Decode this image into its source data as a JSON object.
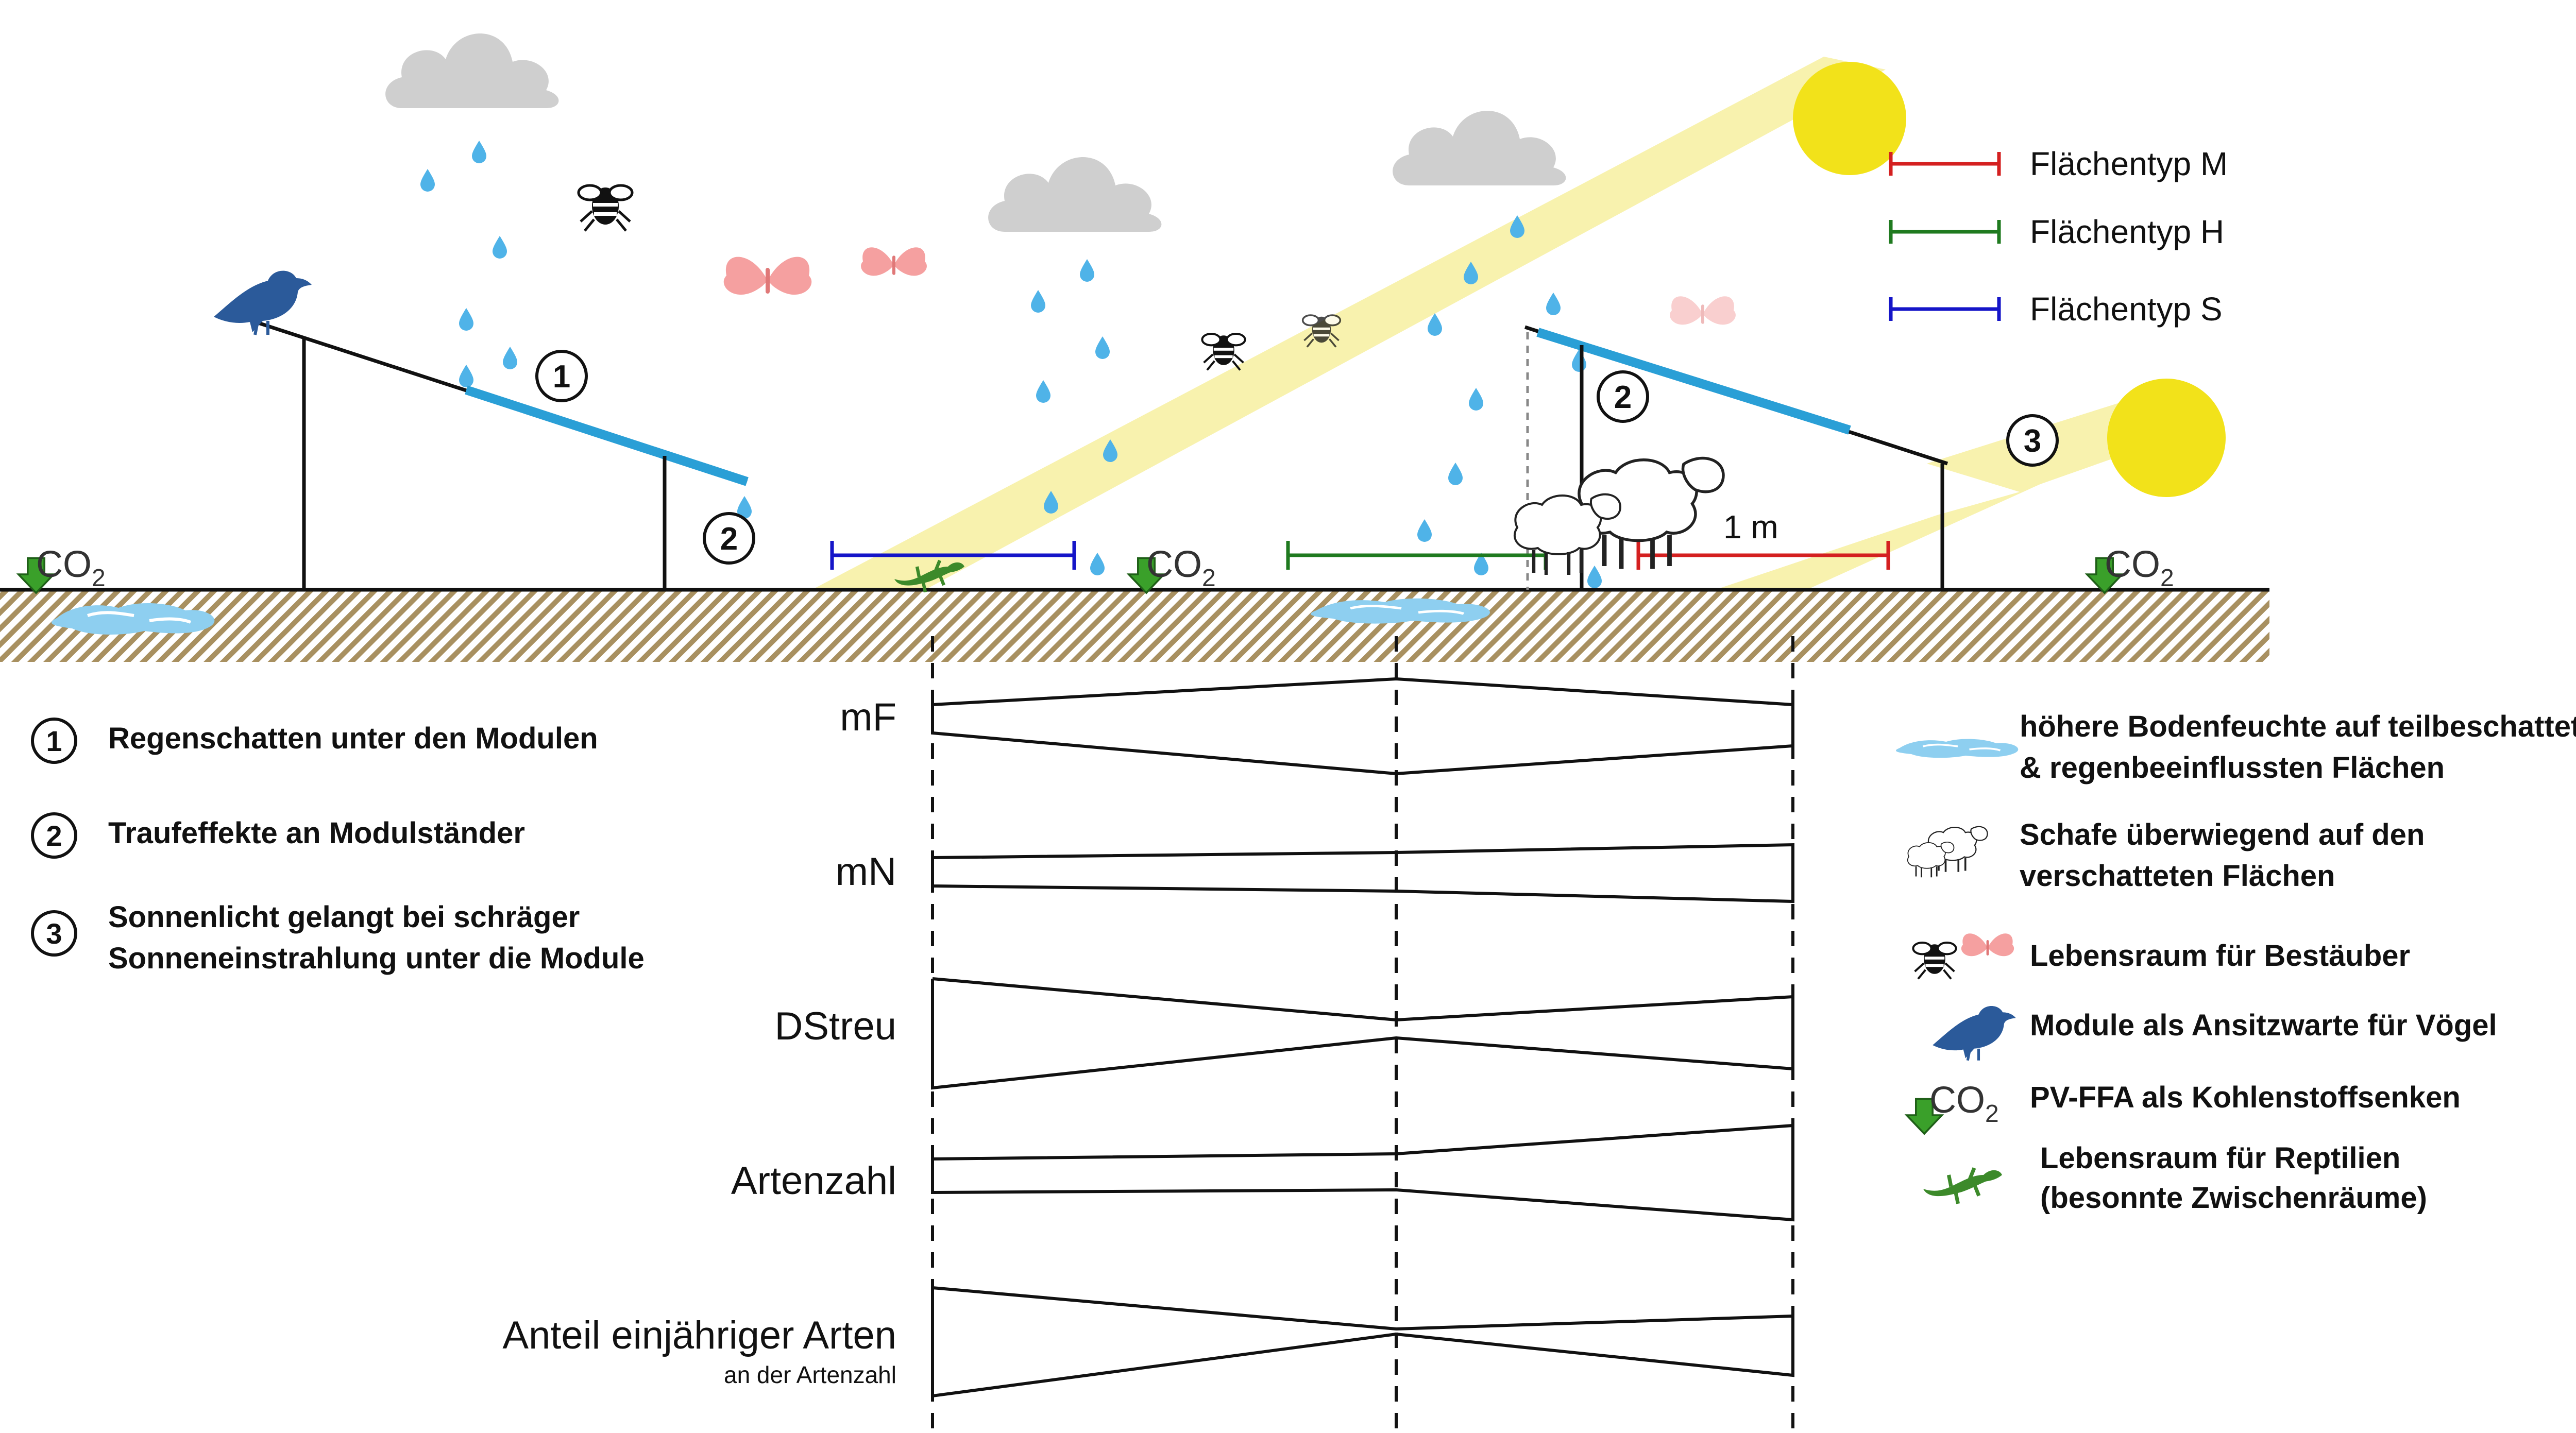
{
  "legend_surfaces": [
    {
      "label": "Flächentyp M",
      "color": "#d42020"
    },
    {
      "label": "Flächentyp H",
      "color": "#1f7a1f"
    },
    {
      "label": "Flächentyp S",
      "color": "#1515c8"
    }
  ],
  "labels": {
    "co2_main": "CO",
    "co2_sub": "2",
    "distance": "1 m"
  },
  "numbered_effects": [
    {
      "num": "1",
      "text": "Regenschatten unter den Modulen"
    },
    {
      "num": "2",
      "text": "Traufeffekte an Modulständer"
    },
    {
      "num": "3",
      "line1": "Sonnenlicht gelangt bei schräger",
      "line2": "Sonneneinstrahlung unter die Module"
    }
  ],
  "parameters": [
    {
      "label": "mF",
      "sublabel": ""
    },
    {
      "label": "mN",
      "sublabel": ""
    },
    {
      "label": "DStreu",
      "sublabel": ""
    },
    {
      "label": "Artenzahl",
      "sublabel": ""
    },
    {
      "label": "Anteil einjähriger Arten",
      "sublabel": "an der Artenzahl"
    }
  ],
  "legend_icons": [
    {
      "icon": "soil-moisture-icon",
      "line1": "höhere Bodenfeuchte auf teilbeschatteten",
      "line2": "& regenbeeinflussten Flächen"
    },
    {
      "icon": "sheep-icon",
      "line1": "Schafe überwiegend auf den",
      "line2": "verschatteten Flächen"
    },
    {
      "icon": "pollinator-icon",
      "line1": "Lebensraum für Bestäuber",
      "line2": ""
    },
    {
      "icon": "bird-icon",
      "line1": "Module als Ansitzwarte für Vögel",
      "line2": ""
    },
    {
      "icon": "co2-sink-icon",
      "line1": "PV-FFA als Kohlenstoffsenken",
      "line2": ""
    },
    {
      "icon": "lizard-icon",
      "line1": "Lebensraum für Reptilien",
      "line2": "(besonnte Zwischenräume)"
    }
  ],
  "colors": {
    "rain": "#4fb3e8",
    "cloud": "#cfcfcf",
    "sun": "#f2e21a",
    "sunbeam": "#f7f0a0",
    "module": "#2a9fd6",
    "soil": "#a89060",
    "bird": "#2b5a9a",
    "lizard": "#3c8a2a",
    "arrow": "#3aa02a"
  }
}
